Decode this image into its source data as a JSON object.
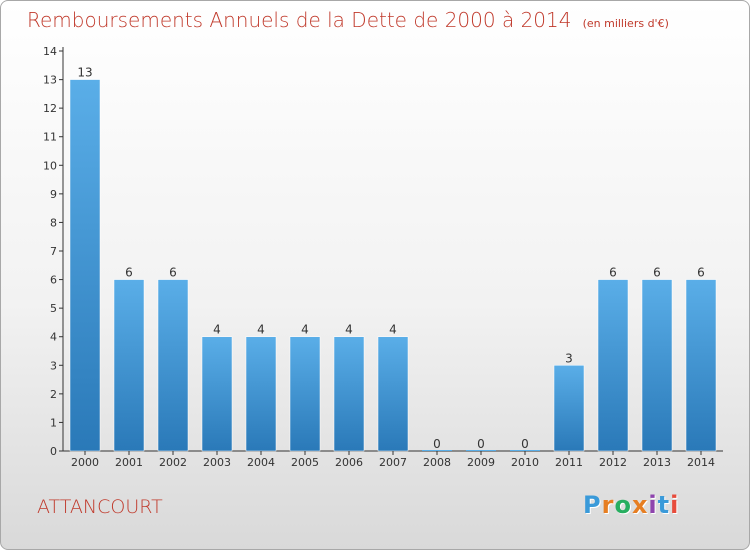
{
  "header": {
    "title": "Remboursements Annuels de la Dette de 2000 à 2014",
    "unit": "(en milliers d'€)"
  },
  "footer": {
    "city": "ATTANCOURT",
    "logo_letters": [
      "P",
      "r",
      "o",
      "x",
      "i",
      "t",
      "i"
    ],
    "logo_colors": [
      "#3a9ad9",
      "#e67e22",
      "#27ae60",
      "#e67e22",
      "#8e44ad",
      "#3a9ad9",
      "#e74c3c"
    ]
  },
  "colors": {
    "bar_light": "#5aaee8",
    "bar_dark": "#2a79b8",
    "title": "#c0392b",
    "axis": "#333333"
  },
  "chart_data": {
    "type": "bar",
    "title": "Remboursements Annuels de la Dette de 2000 à 2014",
    "subtitle": "(en milliers d'€)",
    "categories": [
      "2000",
      "2001",
      "2002",
      "2003",
      "2004",
      "2005",
      "2006",
      "2007",
      "2008",
      "2009",
      "2010",
      "2011",
      "2012",
      "2013",
      "2014"
    ],
    "values": [
      13,
      6,
      6,
      4,
      4,
      4,
      4,
      4,
      0,
      0,
      0,
      3,
      6,
      6,
      6
    ],
    "data_labels": [
      "13",
      "6",
      "6",
      "4",
      "4",
      "4",
      "4",
      "4",
      "0",
      "0",
      "0",
      "3",
      "6",
      "6",
      "6"
    ],
    "ylim": [
      0,
      14
    ],
    "yticks": [
      "0",
      "1",
      "2",
      "3",
      "4",
      "5",
      "6",
      "7",
      "8",
      "9",
      "10",
      "11",
      "12",
      "13",
      "14"
    ],
    "xlabel": "",
    "ylabel": "",
    "grid": false
  }
}
